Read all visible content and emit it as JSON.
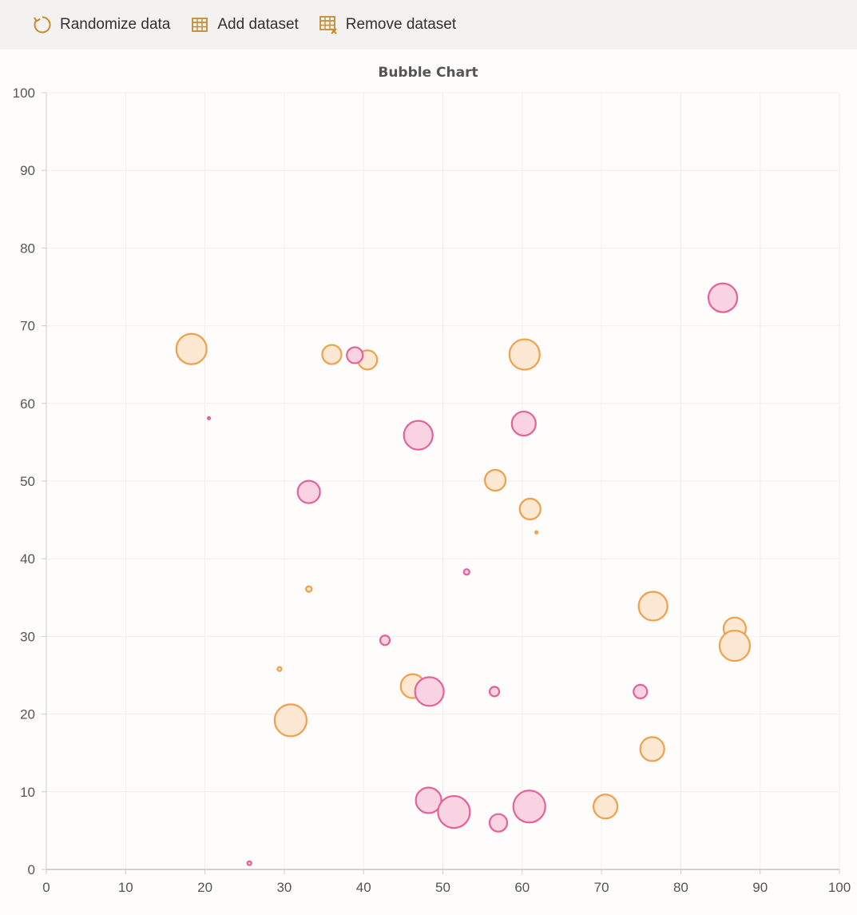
{
  "toolbar": {
    "randomize_label": "Randomize data",
    "add_label": "Add dataset",
    "remove_label": "Remove dataset",
    "randomize_icon": "refresh-icon",
    "add_icon": "table-icon",
    "remove_icon": "table-remove-icon",
    "icon_color": "#c88a2c"
  },
  "chart_data": {
    "type": "bubble",
    "title": "Bubble Chart",
    "xlabel": "",
    "ylabel": "",
    "xlim": [
      0,
      100
    ],
    "ylim": [
      0,
      100
    ],
    "x_ticks": [
      0,
      10,
      20,
      30,
      40,
      50,
      60,
      70,
      80,
      90,
      100
    ],
    "y_ticks": [
      0,
      10,
      20,
      30,
      40,
      50,
      60,
      70,
      80,
      90,
      100
    ],
    "grid": true,
    "legend": "none",
    "series": [
      {
        "color": "#f0a04b",
        "fill": "#fde8d4",
        "points": [
          {
            "x": 18.3,
            "y": 67,
            "r": 19
          },
          {
            "x": 36.0,
            "y": 66.3,
            "r": 12
          },
          {
            "x": 40.5,
            "y": 65.6,
            "r": 12
          },
          {
            "x": 60.3,
            "y": 66.3,
            "r": 19
          },
          {
            "x": 56.6,
            "y": 50.1,
            "r": 13
          },
          {
            "x": 61.0,
            "y": 46.4,
            "r": 13
          },
          {
            "x": 61.8,
            "y": 43.4,
            "r": 1.5
          },
          {
            "x": 33.1,
            "y": 36.1,
            "r": 3.5
          },
          {
            "x": 76.5,
            "y": 33.9,
            "r": 18
          },
          {
            "x": 86.8,
            "y": 31.0,
            "r": 14
          },
          {
            "x": 86.8,
            "y": 28.8,
            "r": 19
          },
          {
            "x": 29.4,
            "y": 25.8,
            "r": 2.5
          },
          {
            "x": 46.2,
            "y": 23.6,
            "r": 15
          },
          {
            "x": 30.8,
            "y": 19.2,
            "r": 20
          },
          {
            "x": 76.4,
            "y": 15.5,
            "r": 15
          },
          {
            "x": 70.5,
            "y": 8.1,
            "r": 15
          }
        ]
      },
      {
        "color": "#e3629b",
        "fill": "#fad3e2",
        "points": [
          {
            "x": 85.3,
            "y": 73.6,
            "r": 18
          },
          {
            "x": 38.9,
            "y": 66.2,
            "r": 10
          },
          {
            "x": 20.5,
            "y": 58.1,
            "r": 1.5
          },
          {
            "x": 60.2,
            "y": 57.4,
            "r": 15
          },
          {
            "x": 46.9,
            "y": 55.9,
            "r": 18
          },
          {
            "x": 33.1,
            "y": 48.6,
            "r": 14
          },
          {
            "x": 53.0,
            "y": 38.3,
            "r": 3.5
          },
          {
            "x": 42.7,
            "y": 29.5,
            "r": 6
          },
          {
            "x": 48.3,
            "y": 22.9,
            "r": 18
          },
          {
            "x": 56.5,
            "y": 22.9,
            "r": 6
          },
          {
            "x": 74.9,
            "y": 22.9,
            "r": 8.5
          },
          {
            "x": 48.2,
            "y": 8.9,
            "r": 16
          },
          {
            "x": 51.4,
            "y": 7.4,
            "r": 20
          },
          {
            "x": 60.9,
            "y": 8.1,
            "r": 20
          },
          {
            "x": 57.0,
            "y": 6.0,
            "r": 11
          },
          {
            "x": 25.6,
            "y": 0.8,
            "r": 2.5
          }
        ]
      }
    ]
  }
}
